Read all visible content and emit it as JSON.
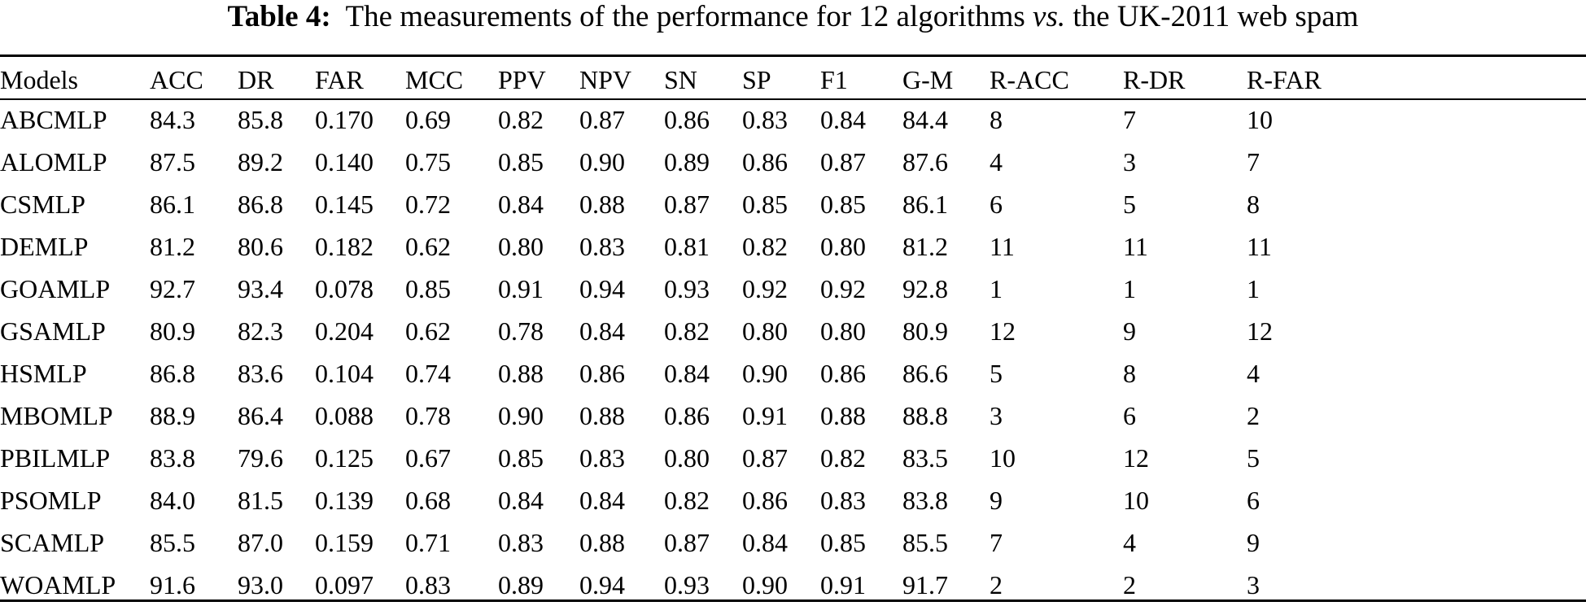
{
  "caption": {
    "label": "Table 4:",
    "text_before": "The measurements of the performance for 12 algorithms",
    "vs": "vs.",
    "text_after": "the UK-2011 web spam"
  },
  "table": {
    "headers": [
      "Models",
      "ACC",
      "DR",
      "FAR",
      "MCC",
      "PPV",
      "NPV",
      "SN",
      "SP",
      "F1",
      "G-M",
      "R-ACC",
      "R-DR",
      "R-FAR"
    ],
    "rows": [
      [
        "ABCMLP",
        "84.3",
        "85.8",
        "0.170",
        "0.69",
        "0.82",
        "0.87",
        "0.86",
        "0.83",
        "0.84",
        "84.4",
        "8",
        "7",
        "10"
      ],
      [
        "ALOMLP",
        "87.5",
        "89.2",
        "0.140",
        "0.75",
        "0.85",
        "0.90",
        "0.89",
        "0.86",
        "0.87",
        "87.6",
        "4",
        "3",
        "7"
      ],
      [
        "CSMLP",
        "86.1",
        "86.8",
        "0.145",
        "0.72",
        "0.84",
        "0.88",
        "0.87",
        "0.85",
        "0.85",
        "86.1",
        "6",
        "5",
        "8"
      ],
      [
        "DEMLP",
        "81.2",
        "80.6",
        "0.182",
        "0.62",
        "0.80",
        "0.83",
        "0.81",
        "0.82",
        "0.80",
        "81.2",
        "11",
        "11",
        "11"
      ],
      [
        "GOAMLP",
        "92.7",
        "93.4",
        "0.078",
        "0.85",
        "0.91",
        "0.94",
        "0.93",
        "0.92",
        "0.92",
        "92.8",
        "1",
        "1",
        "1"
      ],
      [
        "GSAMLP",
        "80.9",
        "82.3",
        "0.204",
        "0.62",
        "0.78",
        "0.84",
        "0.82",
        "0.80",
        "0.80",
        "80.9",
        "12",
        "9",
        "12"
      ],
      [
        "HSMLP",
        "86.8",
        "83.6",
        "0.104",
        "0.74",
        "0.88",
        "0.86",
        "0.84",
        "0.90",
        "0.86",
        "86.6",
        "5",
        "8",
        "4"
      ],
      [
        "MBOMLP",
        "88.9",
        "86.4",
        "0.088",
        "0.78",
        "0.90",
        "0.88",
        "0.86",
        "0.91",
        "0.88",
        "88.8",
        "3",
        "6",
        "2"
      ],
      [
        "PBILMLP",
        "83.8",
        "79.6",
        "0.125",
        "0.67",
        "0.85",
        "0.83",
        "0.80",
        "0.87",
        "0.82",
        "83.5",
        "10",
        "12",
        "5"
      ],
      [
        "PSOMLP",
        "84.0",
        "81.5",
        "0.139",
        "0.68",
        "0.84",
        "0.84",
        "0.82",
        "0.86",
        "0.83",
        "83.8",
        "9",
        "10",
        "6"
      ],
      [
        "SCAMLP",
        "85.5",
        "87.0",
        "0.159",
        "0.71",
        "0.83",
        "0.88",
        "0.87",
        "0.84",
        "0.85",
        "85.5",
        "7",
        "4",
        "9"
      ],
      [
        "WOAMLP",
        "91.6",
        "93.0",
        "0.097",
        "0.83",
        "0.89",
        "0.94",
        "0.93",
        "0.90",
        "0.91",
        "91.7",
        "2",
        "2",
        "3"
      ]
    ]
  }
}
